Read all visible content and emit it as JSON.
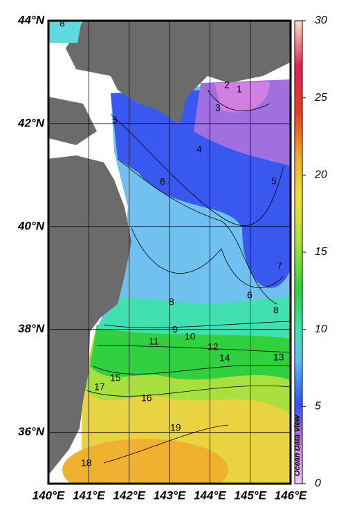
{
  "chart_data": {
    "type": "contour",
    "xlim": [
      140,
      146
    ],
    "xticks": [
      {
        "value": 140,
        "label": "140°E"
      },
      {
        "value": 141,
        "label": "141°E"
      },
      {
        "value": 142,
        "label": "142°E"
      },
      {
        "value": 143,
        "label": "143°E"
      },
      {
        "value": 144,
        "label": "144°E"
      },
      {
        "value": 145,
        "label": "145°E"
      },
      {
        "value": 146,
        "label": "146°E"
      }
    ],
    "ylim": [
      35,
      44
    ],
    "yticks": [
      {
        "value": 44,
        "label": "44°N"
      },
      {
        "value": 42,
        "label": "42°N"
      },
      {
        "value": 40,
        "label": "40°N"
      },
      {
        "value": 38,
        "label": "38°N"
      },
      {
        "value": 36,
        "label": "36°N"
      }
    ],
    "grid": true,
    "zlim": [
      0,
      30
    ],
    "zticks": [
      0,
      5,
      10,
      15,
      20,
      25,
      30
    ],
    "contour_labels": [
      8,
      1,
      2,
      3,
      4,
      5,
      6,
      5,
      7,
      6,
      8,
      8,
      9,
      10,
      11,
      12,
      14,
      13,
      15,
      17,
      16,
      19,
      18
    ],
    "credit": "Ocean Data View"
  }
}
